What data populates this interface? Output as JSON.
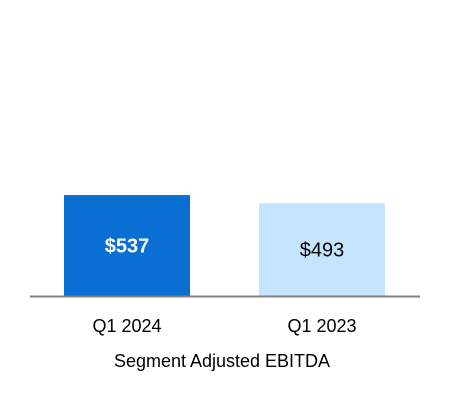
{
  "chart_data": {
    "type": "bar",
    "categories": [
      "Q1 2024",
      "Q1 2023"
    ],
    "values": [
      537,
      493
    ],
    "data_labels": [
      "$537",
      "$493"
    ],
    "bar_colors": [
      "#0a6fd2",
      "#c6e4fd"
    ],
    "label_colors": [
      "#ffffff",
      "#000000"
    ],
    "label_bold": [
      true,
      false
    ],
    "xlabel": "Segment Adjusted EBITDA",
    "ylim": [
      0,
      1000
    ],
    "grid": false,
    "legend": "none",
    "baseline_color": "#808080"
  }
}
